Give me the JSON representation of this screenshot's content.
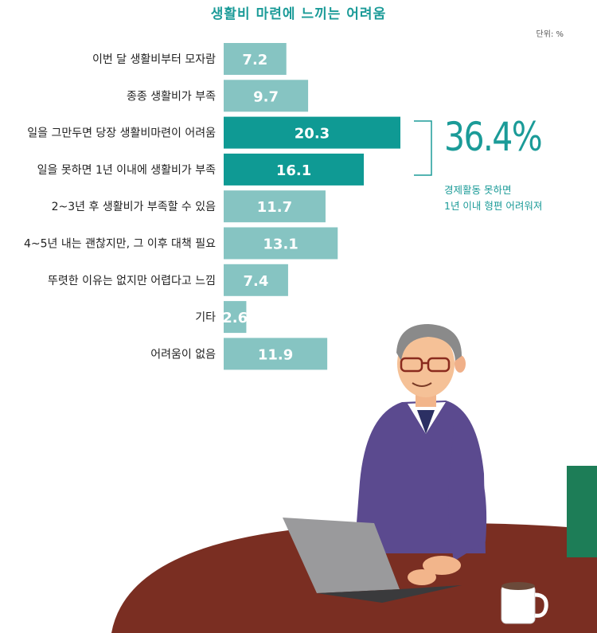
{
  "title": "생활비 마련에 느끼는 어려움",
  "unit": "단위: %",
  "summary": {
    "value": "36.4%",
    "note": [
      "경제활동 못하면",
      "1년 이내 형편 어려워져"
    ]
  },
  "colors": {
    "light_bar": "#86c4c2",
    "dark_bar": "#0f9a94",
    "accent": "#1b9b98"
  },
  "illustration": {
    "description_icon": "man-at-laptop-illustration"
  },
  "chart_data": {
    "type": "bar",
    "orientation": "horizontal",
    "categories": [
      "이번 달 생활비부터 모자람",
      "종종 생활비가 부족",
      "일을 그만두면 당장 생활비마련이 어려움",
      "일을 못하면 1년 이내에 생활비가 부족",
      "2~3년 후 생활비가 부족할 수 있음",
      "4~5년 내는 괜찮지만, 그 이후 대책 필요",
      "뚜렷한 이유는 없지만 어렵다고 느낌",
      "기타",
      "어려움이 없음"
    ],
    "values": [
      7.2,
      9.7,
      20.3,
      16.1,
      11.7,
      13.1,
      7.4,
      2.6,
      11.9
    ],
    "labels": [
      "7.2",
      "9.7",
      "20.3",
      "16.1",
      "11.7",
      "13.1",
      "7.4",
      "2.6",
      "11.9"
    ],
    "highlighted": [
      false,
      false,
      true,
      true,
      false,
      false,
      false,
      false,
      false
    ],
    "title": "생활비 마련에 느끼는 어려움"
  }
}
